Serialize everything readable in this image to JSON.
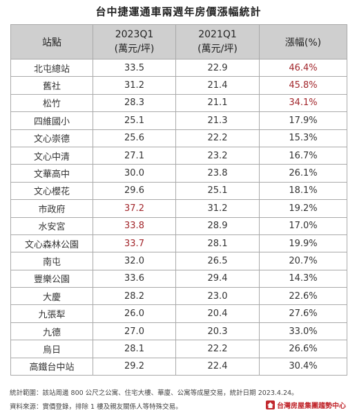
{
  "chart_data": {
    "type": "table",
    "title": "台中捷運通車兩週年房價漲幅統計",
    "columns": [
      {
        "label": "站點",
        "sub": ""
      },
      {
        "label": "2023Q1",
        "sub": "(萬元/坪)"
      },
      {
        "label": "2021Q1",
        "sub": "(萬元/坪)"
      },
      {
        "label": "漲幅(%)",
        "sub": ""
      }
    ],
    "rows": [
      {
        "station": "北屯總站",
        "q2023": "33.5",
        "q2021": "22.9",
        "change": "46.4%",
        "hl2023": false,
        "hlChange": true
      },
      {
        "station": "舊社",
        "q2023": "31.2",
        "q2021": "21.4",
        "change": "45.8%",
        "hl2023": false,
        "hlChange": true
      },
      {
        "station": "松竹",
        "q2023": "28.3",
        "q2021": "21.1",
        "change": "34.1%",
        "hl2023": false,
        "hlChange": true
      },
      {
        "station": "四維國小",
        "q2023": "25.1",
        "q2021": "21.3",
        "change": "17.9%",
        "hl2023": false,
        "hlChange": false
      },
      {
        "station": "文心崇德",
        "q2023": "25.6",
        "q2021": "22.2",
        "change": "15.3%",
        "hl2023": false,
        "hlChange": false
      },
      {
        "station": "文心中清",
        "q2023": "27.1",
        "q2021": "23.2",
        "change": "16.7%",
        "hl2023": false,
        "hlChange": false
      },
      {
        "station": "文華高中",
        "q2023": "30.0",
        "q2021": "23.8",
        "change": "26.1%",
        "hl2023": false,
        "hlChange": false
      },
      {
        "station": "文心櫻花",
        "q2023": "29.6",
        "q2021": "25.1",
        "change": "18.1%",
        "hl2023": false,
        "hlChange": false
      },
      {
        "station": "市政府",
        "q2023": "37.2",
        "q2021": "31.2",
        "change": "19.2%",
        "hl2023": true,
        "hlChange": false
      },
      {
        "station": "水安宮",
        "q2023": "33.8",
        "q2021": "28.9",
        "change": "17.0%",
        "hl2023": true,
        "hlChange": false
      },
      {
        "station": "文心森林公園",
        "q2023": "33.7",
        "q2021": "28.1",
        "change": "19.9%",
        "hl2023": true,
        "hlChange": false
      },
      {
        "station": "南屯",
        "q2023": "32.0",
        "q2021": "26.5",
        "change": "20.7%",
        "hl2023": false,
        "hlChange": false
      },
      {
        "station": "豐樂公園",
        "q2023": "33.6",
        "q2021": "29.4",
        "change": "14.3%",
        "hl2023": false,
        "hlChange": false
      },
      {
        "station": "大慶",
        "q2023": "28.2",
        "q2021": "23.0",
        "change": "22.6%",
        "hl2023": false,
        "hlChange": false
      },
      {
        "station": "九張犁",
        "q2023": "26.0",
        "q2021": "20.4",
        "change": "27.6%",
        "hl2023": false,
        "hlChange": false
      },
      {
        "station": "九德",
        "q2023": "27.0",
        "q2021": "20.3",
        "change": "33.0%",
        "hl2023": false,
        "hlChange": false
      },
      {
        "station": "烏日",
        "q2023": "28.1",
        "q2021": "22.2",
        "change": "26.6%",
        "hl2023": false,
        "hlChange": false
      },
      {
        "station": "高鐵台中站",
        "q2023": "29.2",
        "q2021": "22.4",
        "change": "30.4%",
        "hl2023": false,
        "hlChange": false
      }
    ],
    "highlight_color": "#a2262b",
    "header_bg": "#cfcfcf"
  },
  "footnotes": {
    "scope": "統計範圍：該站周邊 800 公尺之公寓、住宅大樓、華廈、公寓等成屋交易，統計日期 2023.4.24。",
    "source": "資料來源：實價登錄，排除 1 樓及親友關係人等特殊交易。"
  },
  "logo": {
    "text": "台灣房屋集團趨勢中心",
    "icon": "house-logo-icon"
  }
}
